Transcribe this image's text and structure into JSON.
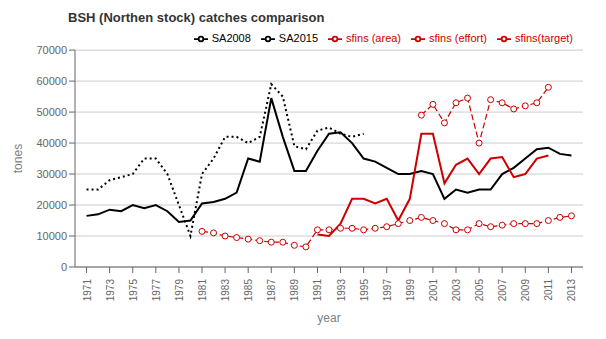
{
  "chart_data": {
    "type": "line",
    "title": "BSH (Northen stock)  catches comparison",
    "xlabel": "year",
    "ylabel": "tones",
    "xlim": [
      1970,
      2014
    ],
    "xticks": [
      1971,
      1973,
      1975,
      1977,
      1979,
      1981,
      1983,
      1985,
      1987,
      1989,
      1991,
      1993,
      1995,
      1997,
      1999,
      2001,
      2003,
      2005,
      2007,
      2009,
      2011,
      2013
    ],
    "ylim": [
      0,
      70000
    ],
    "yticks": [
      0,
      10000,
      20000,
      30000,
      40000,
      50000,
      60000,
      70000
    ],
    "grid": "y",
    "legend": "upper right",
    "series": [
      {
        "name": "SA2015",
        "color": "#000000",
        "line_style": "solid",
        "marker": "none",
        "x": [
          1971,
          1972,
          1973,
          1974,
          1975,
          1976,
          1977,
          1978,
          1979,
          1980,
          1981,
          1982,
          1983,
          1984,
          1985,
          1986,
          1987,
          1988,
          1989,
          1990,
          1991,
          1992,
          1993,
          1994,
          1995,
          1996,
          1997,
          1998,
          1999,
          2000,
          2001,
          2002,
          2003,
          2004,
          2005,
          2006,
          2007,
          2008,
          2009,
          2010,
          2011,
          2012,
          2013
        ],
        "values": [
          16500,
          17000,
          18500,
          18000,
          20000,
          19000,
          20000,
          18000,
          14500,
          15000,
          20500,
          21000,
          22000,
          24000,
          35000,
          34000,
          54500,
          42000,
          31000,
          31000,
          37500,
          43000,
          43500,
          40000,
          35000,
          34000,
          32000,
          30000,
          30000,
          31000,
          30000,
          22000,
          25000,
          24000,
          25000,
          25000,
          30000,
          32000,
          35000,
          38000,
          38500,
          36500,
          36000
        ]
      },
      {
        "name": "SA2008",
        "color": "#000000",
        "line_style": "dotted",
        "marker": "none",
        "x": [
          1971,
          1972,
          1973,
          1974,
          1975,
          1976,
          1977,
          1978,
          1979,
          1980,
          1981,
          1982,
          1983,
          1984,
          1985,
          1986,
          1987,
          1988,
          1989,
          1990,
          1991,
          1992,
          1993,
          1994,
          1995,
          1996,
          1997,
          1998,
          1999,
          2000,
          2001,
          2002,
          2003,
          2004,
          2005,
          2006,
          2007,
          2008,
          2009,
          2010,
          2011,
          2012,
          2013
        ],
        "values": [
          25000,
          25000,
          28000,
          29000,
          30000,
          35000,
          35000,
          30000,
          20000,
          10000,
          30000,
          35000,
          42000,
          42000,
          40000,
          42000,
          59000,
          55000,
          39000,
          38000,
          44000,
          45000,
          43000,
          42000,
          43000,
          null,
          null,
          null,
          null,
          null,
          null,
          null,
          null,
          null,
          null,
          null,
          null,
          null,
          null,
          null,
          null,
          null,
          null
        ]
      },
      {
        "name": "sfins (area)",
        "color": "#cc0000",
        "line_style": "dashed",
        "marker": "circle",
        "x": [
          1981,
          1982,
          1983,
          1984,
          1985,
          1986,
          1987,
          1988,
          1989,
          1990,
          1991,
          1992,
          1993,
          1994,
          1995,
          1996,
          1997,
          1998,
          1999,
          2000,
          2001,
          2002,
          2003,
          2004,
          2005,
          2006,
          2007,
          2008,
          2009,
          2010,
          2011,
          2012,
          2013
        ],
        "values": [
          11500,
          11000,
          10000,
          9500,
          9000,
          8500,
          8000,
          8000,
          7000,
          6500,
          12000,
          12000,
          12500,
          12500,
          12000,
          12500,
          13000,
          14000,
          15000,
          16000,
          15000,
          14000,
          12000,
          12000,
          14000,
          13000,
          13500,
          14000,
          14000,
          14000,
          15000,
          16000,
          16500
        ]
      },
      {
        "name": "sfins (effort)",
        "color": "#cc0000",
        "line_style": "solid",
        "marker": "none",
        "x": [
          1981,
          1982,
          1983,
          1984,
          1985,
          1986,
          1987,
          1988,
          1989,
          1990,
          1991,
          1992,
          1993,
          1994,
          1995,
          1996,
          1997,
          1998,
          1999,
          2000,
          2001,
          2002,
          2003,
          2004,
          2005,
          2006,
          2007,
          2008,
          2009,
          2010,
          2011,
          2012,
          2013
        ],
        "values": [
          null,
          null,
          null,
          null,
          null,
          null,
          null,
          null,
          null,
          null,
          10500,
          10000,
          14000,
          22000,
          22000,
          20500,
          22000,
          15000,
          22000,
          43000,
          43000,
          27000,
          33000,
          35000,
          30000,
          35000,
          35500,
          29000,
          30000,
          35000,
          36000,
          null,
          null
        ]
      },
      {
        "name": "sfins(target)",
        "color": "#cc0000",
        "line_style": "dashed",
        "marker": "circle",
        "x": [
          1981,
          1982,
          1983,
          1984,
          1985,
          1986,
          1987,
          1988,
          1989,
          1990,
          1991,
          1992,
          1993,
          1994,
          1995,
          1996,
          1997,
          1998,
          1999,
          2000,
          2001,
          2002,
          2003,
          2004,
          2005,
          2006,
          2007,
          2008,
          2009,
          2010,
          2011,
          2012,
          2013
        ],
        "values": [
          null,
          null,
          null,
          null,
          null,
          null,
          null,
          null,
          null,
          null,
          null,
          null,
          null,
          null,
          null,
          null,
          null,
          null,
          null,
          49000,
          52500,
          46500,
          53000,
          54500,
          40000,
          54000,
          53000,
          51000,
          52000,
          53000,
          58000,
          null,
          null
        ]
      }
    ]
  }
}
